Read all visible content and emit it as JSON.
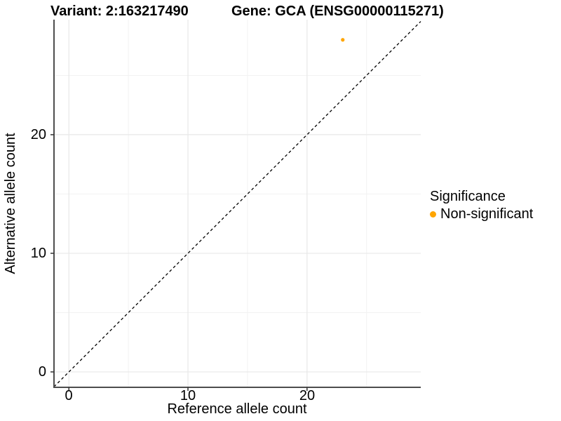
{
  "figure": {
    "titles": {
      "variant": "Variant: 2:163217490",
      "gene": "Gene: GCA (ENSG00000115271)"
    },
    "axes": {
      "xlabel": "Reference allele count",
      "ylabel": "Alternative allele count",
      "x_tick_labels": [
        "0",
        "10",
        "20"
      ],
      "y_tick_labels": [
        "0",
        "10",
        "20"
      ]
    },
    "legend": {
      "title": "Significance",
      "items": [
        {
          "label": "Non-significant",
          "color": "#FFA500"
        }
      ]
    },
    "colors": {
      "point": "#FFA500",
      "axis_line": "#4D4D4D",
      "tick_mark": "#333333",
      "grid_major": "#E9E9E9",
      "grid_minor": "#F2F2F2",
      "reference_line": "#000000",
      "text": "#000000",
      "background": "#FFFFFF"
    }
  },
  "chart_data": {
    "type": "scatter",
    "title": "Variant: 2:163217490   Gene: GCA (ENSG00000115271)",
    "xlabel": "Reference allele count",
    "ylabel": "Alternative allele count",
    "xlim": [
      -1.25,
      29.55
    ],
    "ylim": [
      -1.3,
      29.7
    ],
    "x_tick_values": [
      0,
      10,
      20
    ],
    "y_tick_values": [
      0,
      10,
      20
    ],
    "minor_grid_values_x": [
      5,
      15,
      25
    ],
    "minor_grid_values_y": [
      5,
      15,
      25
    ],
    "grid": "on",
    "legend_position": "right",
    "legend_title": "Significance",
    "series": [
      {
        "name": "Non-significant",
        "color": "#FFA500",
        "points": [
          {
            "x": 23,
            "y": 28
          }
        ]
      }
    ],
    "reference_line": {
      "type": "identity",
      "equation": "y = x",
      "style": "dashed",
      "color": "#000000"
    }
  }
}
